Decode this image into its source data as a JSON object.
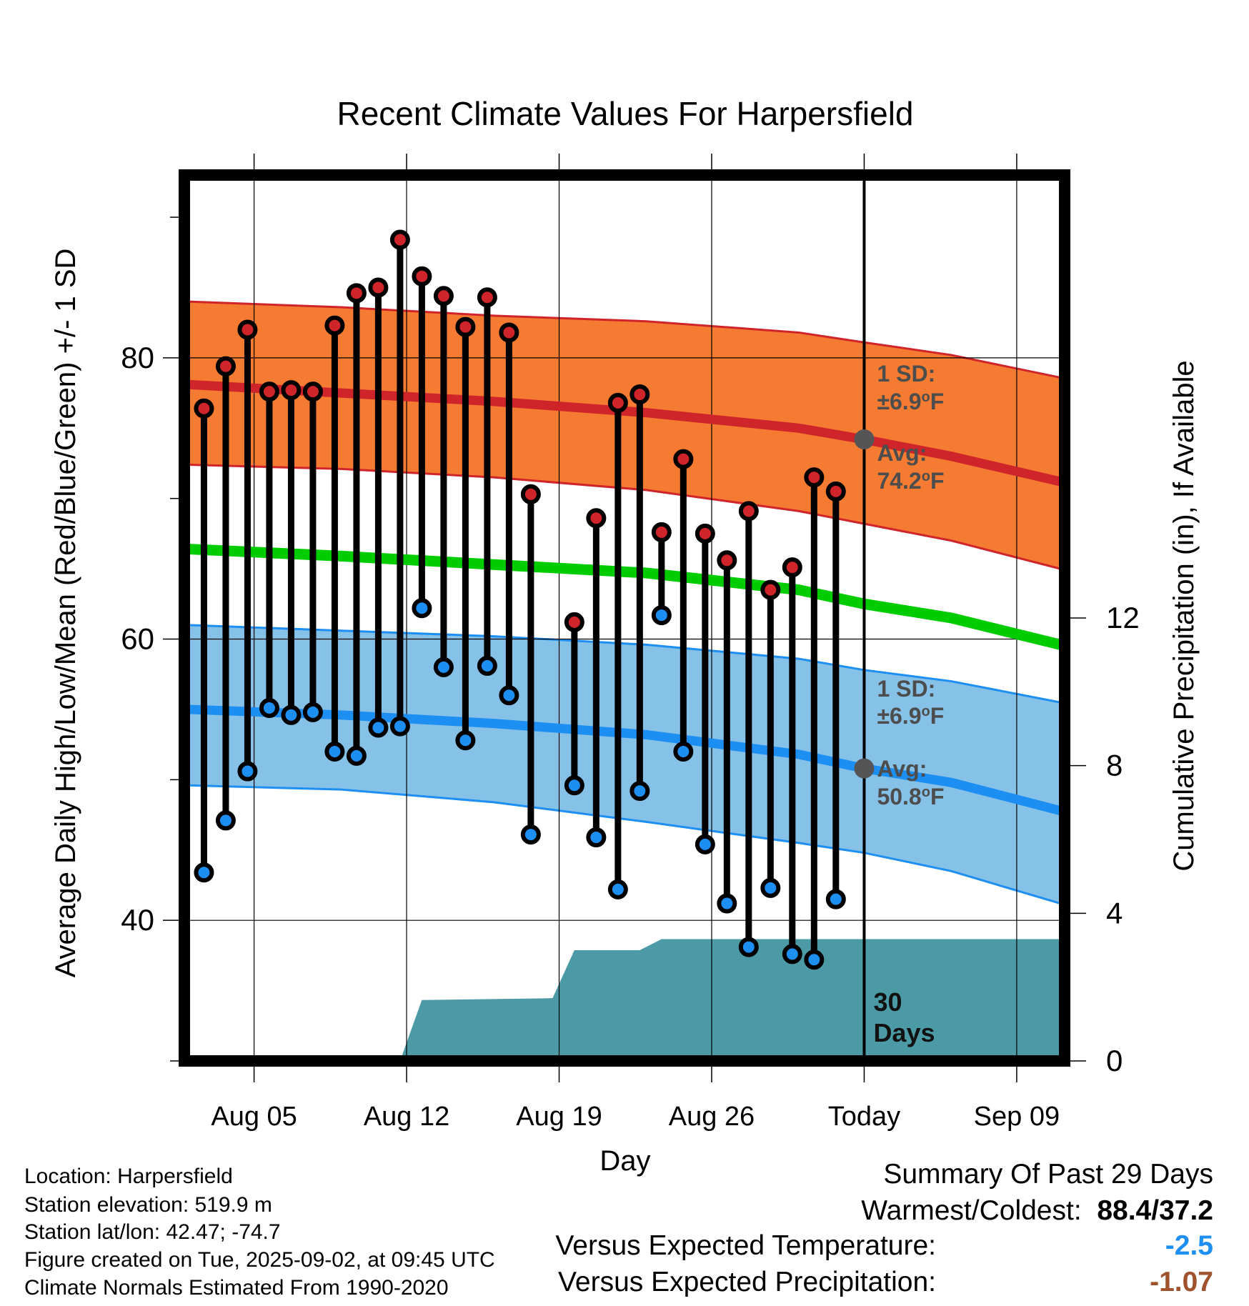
{
  "chart_data": {
    "type": "line",
    "title": "Recent Climate Values For Harpersfield",
    "xlabel": "Day",
    "ylabel": "Average Daily High/Low/Mean (Red/Blue/Green) +/- 1 SD",
    "y2label": "Cumulative Precipitation (in), If Available",
    "x_start_day": 0,
    "xlim_days": [
      -0.2,
      40.2
    ],
    "ylim": [
      30,
      93
    ],
    "y2lim": [
      0,
      24
    ],
    "yticks": [
      "40",
      "60",
      "80"
    ],
    "y2ticks": [
      "0",
      "4",
      "8",
      "12"
    ],
    "xticks": [
      "Aug 05",
      "Aug 12",
      "Aug 19",
      "Aug 26",
      "Today",
      "Sep 09"
    ],
    "xtick_days": [
      3,
      10,
      17,
      24,
      31,
      38
    ],
    "today_day": 31,
    "grid": true,
    "normals": {
      "day": [
        0,
        7,
        14,
        21,
        28,
        31,
        35,
        40
      ],
      "high_avg": [
        78.1,
        77.5,
        76.9,
        76.1,
        75.0,
        74.2,
        73.0,
        71.2
      ],
      "high_upper": [
        84.0,
        83.6,
        83.0,
        82.6,
        81.8,
        81.1,
        80.2,
        78.6
      ],
      "high_lower": [
        72.4,
        72.1,
        71.5,
        70.6,
        69.1,
        68.2,
        67.0,
        65.0
      ],
      "mean_avg": [
        66.4,
        65.9,
        65.3,
        64.7,
        63.5,
        62.5,
        61.5,
        59.6
      ],
      "low_avg": [
        55.0,
        54.6,
        54.0,
        53.2,
        51.8,
        50.8,
        49.8,
        47.8
      ],
      "low_upper": [
        61.0,
        60.6,
        60.2,
        59.6,
        58.6,
        57.8,
        57.0,
        55.5
      ],
      "low_lower": [
        49.6,
        49.3,
        48.4,
        47.0,
        45.5,
        44.8,
        43.5,
        41.2
      ]
    },
    "observations": {
      "day": [
        0.7,
        1.7,
        2.7,
        3.7,
        4.7,
        5.7,
        6.7,
        7.7,
        8.7,
        9.7,
        10.7,
        11.7,
        12.7,
        13.7,
        14.7,
        15.7,
        17.7,
        18.7,
        19.7,
        20.7,
        21.7,
        22.7,
        23.7,
        24.7,
        25.7,
        26.7,
        27.7,
        28.7,
        29.7
      ],
      "high": [
        76.4,
        79.4,
        82.0,
        77.6,
        77.7,
        77.6,
        82.3,
        84.6,
        85.0,
        88.4,
        85.8,
        84.4,
        82.2,
        84.3,
        81.8,
        70.3,
        61.2,
        68.6,
        76.8,
        77.4,
        67.6,
        72.8,
        67.5,
        65.6,
        69.1,
        63.5,
        65.1,
        71.5,
        70.5
      ],
      "low": [
        43.4,
        47.1,
        50.6,
        55.1,
        54.6,
        54.8,
        52.0,
        51.7,
        53.7,
        53.8,
        62.2,
        58.0,
        52.8,
        58.1,
        56.0,
        46.1,
        49.6,
        45.9,
        42.2,
        49.2,
        61.7,
        52.0,
        45.4,
        41.2,
        38.1,
        42.3,
        37.6,
        37.2,
        41.5
      ]
    },
    "precipitation": {
      "day": [
        0.7,
        9.7,
        10.7,
        16.7,
        17.7,
        20.7,
        21.7,
        30.7,
        40.0
      ],
      "cumulative": [
        0,
        0,
        1.65,
        1.7,
        3.0,
        3.0,
        3.3,
        3.3,
        3.3
      ]
    },
    "annotations": {
      "high_sd_label": "1 SD:",
      "high_sd_value": "±6.9",
      "high_avg_label": "Avg:",
      "high_avg_value": "74.2",
      "low_sd_label": "1 SD:",
      "low_sd_value": "±6.9",
      "low_avg_label": "Avg:",
      "low_avg_value": "50.8",
      "degree_unit": "o",
      "temp_unit": "F",
      "days_count": "30",
      "days_word": "Days"
    },
    "colors": {
      "high_band": "#f47b31",
      "high_line": "#d0242b",
      "mean_line": "#00cc00",
      "low_band": "#86c1e8",
      "low_line": "#1e8ff2",
      "precip": "#4b9aa5",
      "high_marker": "#d0242b",
      "low_marker": "#1e8ff2",
      "annotation_text": "#4d4d4d"
    }
  },
  "footer": {
    "location": "Location: Harpersfield",
    "elevation": "Station elevation: 519.9 m",
    "latlon": "Station lat/lon: 42.47; -74.7",
    "created": "Figure created on Tue, 2025-09-02, at 09:45 UTC",
    "normals": "Climate Normals Estimated From 1990-2020"
  },
  "summary": {
    "heading": "Summary Of Past 29 Days",
    "warm_cold_label": "Warmest/Coldest:",
    "warm_cold_value": "88.4/37.2",
    "temp_label": "Versus Expected Temperature:",
    "temp_value": "-2.5",
    "temp_color": "#1e8ff2",
    "precip_label": "Versus Expected Precipitation:",
    "precip_value": "-1.07",
    "precip_color": "#a0522d"
  }
}
